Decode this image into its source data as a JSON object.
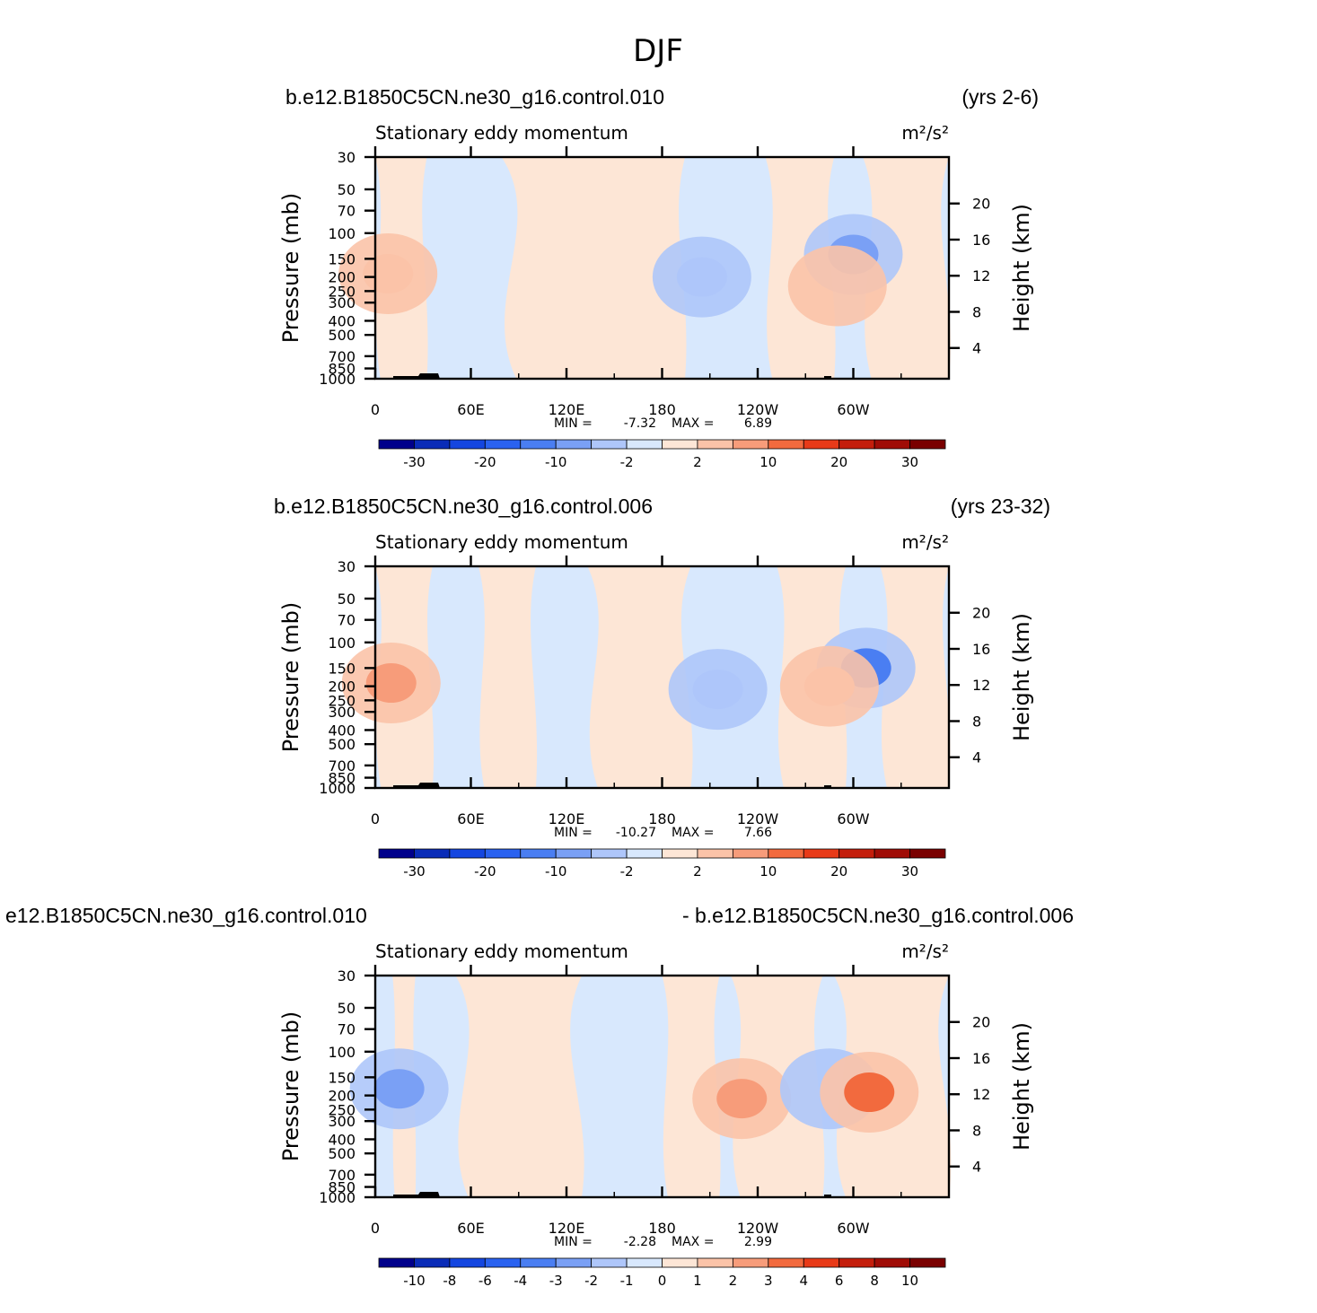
{
  "figure_title": "DJF",
  "chart_data": [
    {
      "type": "heatmap",
      "left_title": "b.e12.B1850C5CN.ne30_g16.control.010",
      "right_title": "(yrs 2-6)",
      "variable": "Stationary eddy momentum",
      "units": "m²/s²",
      "ylabel": "Pressure (mb)",
      "y2label": "Height (km)",
      "x_ticks": [
        "0",
        "60E",
        "120E",
        "180",
        "120W",
        "60W"
      ],
      "y_ticks": [
        "30",
        "50",
        "70",
        "100",
        "150",
        "200",
        "250",
        "300",
        "400",
        "500",
        "700",
        "850",
        "1000"
      ],
      "y2_ticks": [
        "20",
        "16",
        "12",
        "8",
        "4"
      ],
      "min_label": "MIN =",
      "min_value": "-7.32",
      "max_label": "MAX =",
      "max_value": "6.89",
      "colorbar_labels": [
        "-30",
        "-20",
        "-10",
        "-2",
        "2",
        "10",
        "20",
        "30"
      ],
      "features": [
        {
          "lon": 8,
          "p": 190,
          "value": 5
        },
        {
          "lon": 205,
          "p": 200,
          "value": -5
        },
        {
          "lon": 300,
          "p": 140,
          "value": -7.3
        },
        {
          "lon": 290,
          "p": 230,
          "value": 4
        }
      ]
    },
    {
      "type": "heatmap",
      "left_title": "b.e12.B1850C5CN.ne30_g16.control.006",
      "right_title": "(yrs 23-32)",
      "variable": "Stationary eddy momentum",
      "units": "m²/s²",
      "ylabel": "Pressure (mb)",
      "y2label": "Height (km)",
      "x_ticks": [
        "0",
        "60E",
        "120E",
        "180",
        "120W",
        "60W"
      ],
      "y_ticks": [
        "30",
        "50",
        "70",
        "100",
        "150",
        "200",
        "250",
        "300",
        "400",
        "500",
        "700",
        "850",
        "1000"
      ],
      "y2_ticks": [
        "20",
        "16",
        "12",
        "8",
        "4"
      ],
      "min_label": "MIN =",
      "min_value": "-10.27",
      "max_label": "MAX =",
      "max_value": "7.66",
      "colorbar_labels": [
        "-30",
        "-20",
        "-10",
        "-2",
        "2",
        "10",
        "20",
        "30"
      ],
      "features": [
        {
          "lon": 10,
          "p": 190,
          "value": 6
        },
        {
          "lon": 215,
          "p": 210,
          "value": -5.5
        },
        {
          "lon": 308,
          "p": 150,
          "value": -10.3
        },
        {
          "lon": 285,
          "p": 200,
          "value": 5
        }
      ]
    },
    {
      "type": "heatmap",
      "left_title": "e12.B1850C5CN.ne30_g16.control.010",
      "right_title": "- b.e12.B1850C5CN.ne30_g16.control.006",
      "variable": "Stationary eddy momentum",
      "units": "m²/s²",
      "ylabel": "Pressure (mb)",
      "y2label": "Height (km)",
      "x_ticks": [
        "0",
        "60E",
        "120E",
        "180",
        "120W",
        "60W"
      ],
      "y_ticks": [
        "30",
        "50",
        "70",
        "100",
        "150",
        "200",
        "250",
        "300",
        "400",
        "500",
        "700",
        "850",
        "1000"
      ],
      "y2_ticks": [
        "20",
        "16",
        "12",
        "8",
        "4"
      ],
      "min_label": "MIN =",
      "min_value": "-2.28",
      "max_label": "MAX =",
      "max_value": "2.99",
      "colorbar_labels": [
        "-10",
        "-8",
        "-6",
        "-4",
        "-3",
        "-2",
        "-1",
        "0",
        "1",
        "2",
        "3",
        "4",
        "6",
        "8",
        "10"
      ],
      "features": [
        {
          "lon": 15,
          "p": 180,
          "value": -2.2
        },
        {
          "lon": 230,
          "p": 210,
          "value": 2.3
        },
        {
          "lon": 285,
          "p": 180,
          "value": -2
        },
        {
          "lon": 310,
          "p": 190,
          "value": 3.0
        }
      ]
    }
  ],
  "colors": {
    "colorbar": [
      "#00008b",
      "#0a2cb8",
      "#1446e0",
      "#2a62f0",
      "#4a7ef2",
      "#7aa0f5",
      "#aec6fa",
      "#d8e8fd",
      "#fde6d6",
      "#fbc3a8",
      "#f79c7a",
      "#f26a3e",
      "#e83a18",
      "#c41e0c",
      "#a00c06",
      "#7a0000"
    ],
    "weak_negative": "#d8e8fd",
    "weak_positive": "#fde6d6",
    "mid_negative": "#aec6fa",
    "mid_positive": "#fbc3a8",
    "strong_negative": "#7aa0f5",
    "strong_positive": "#f79c7a",
    "topography": "#000000"
  }
}
